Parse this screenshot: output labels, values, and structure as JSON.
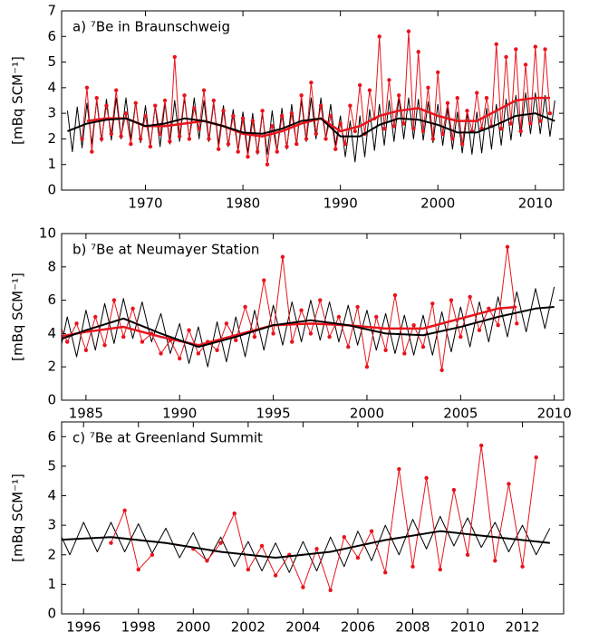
{
  "chart_data": [
    {
      "type": "line",
      "title": "a) ⁷Be in Braunschweig",
      "y_label": "[mBq SCM⁻¹]",
      "xlim": [
        1961.4,
        2012.9
      ],
      "ylim": [
        0,
        7
      ],
      "xticks": [
        1970,
        1980,
        1990,
        2000,
        2010
      ],
      "yticks": [
        0,
        1,
        2,
        3,
        4,
        5,
        6,
        7
      ],
      "x": [
        1962,
        1962.5,
        1963,
        1963.5,
        1964,
        1964.5,
        1965,
        1965.5,
        1966,
        1966.5,
        1967,
        1967.5,
        1968,
        1968.5,
        1969,
        1969.5,
        1970,
        1970.5,
        1971,
        1971.5,
        1972,
        1972.5,
        1973,
        1973.5,
        1974,
        1974.5,
        1975,
        1975.5,
        1976,
        1976.5,
        1977,
        1977.5,
        1978,
        1978.5,
        1979,
        1979.5,
        1980,
        1980.5,
        1981,
        1981.5,
        1982,
        1982.5,
        1983,
        1983.5,
        1984,
        1984.5,
        1985,
        1985.5,
        1986,
        1986.5,
        1987,
        1987.5,
        1988,
        1988.5,
        1989,
        1989.5,
        1990,
        1990.5,
        1991,
        1991.5,
        1992,
        1992.5,
        1993,
        1993.5,
        1994,
        1994.5,
        1995,
        1995.5,
        1996,
        1996.5,
        1997,
        1997.5,
        1998,
        1998.5,
        1999,
        1999.5,
        2000,
        2000.5,
        2001,
        2001.5,
        2002,
        2002.5,
        2003,
        2003.5,
        2004,
        2004.5,
        2005,
        2005.5,
        2006,
        2006.5,
        2007,
        2007.5,
        2008,
        2008.5,
        2009,
        2009.5,
        2010,
        2010.5,
        2011,
        2011.5,
        2012
      ],
      "series": [
        {
          "color": "#000000",
          "line_width": 1,
          "values": [
            3.1,
            1.5,
            3.25,
            1.65,
            3.4,
            1.8,
            3.5,
            1.9,
            3.55,
            1.95,
            3.6,
            2.0,
            3.6,
            2.0,
            3.45,
            1.85,
            3.3,
            1.7,
            3.3,
            1.7,
            3.4,
            1.8,
            3.5,
            1.9,
            3.6,
            2.0,
            3.6,
            2.0,
            3.5,
            1.9,
            3.4,
            1.8,
            3.3,
            1.7,
            3.15,
            1.55,
            3.05,
            1.45,
            3.0,
            1.4,
            3.0,
            1.4,
            3.1,
            1.5,
            3.2,
            1.6,
            3.35,
            1.75,
            3.5,
            1.9,
            3.6,
            2.0,
            3.6,
            2.0,
            3.35,
            1.75,
            2.9,
            1.3,
            2.7,
            1.1,
            2.9,
            1.3,
            3.15,
            1.55,
            3.35,
            1.75,
            3.5,
            1.9,
            3.6,
            2.0,
            3.6,
            2.0,
            3.55,
            1.95,
            3.45,
            1.85,
            3.35,
            1.75,
            3.2,
            1.6,
            3.05,
            1.45,
            3.0,
            1.4,
            3.05,
            1.45,
            3.2,
            1.6,
            3.35,
            1.75,
            3.55,
            1.95,
            3.7,
            2.1,
            3.8,
            2.2,
            3.8,
            2.2,
            3.7,
            2.1,
            3.5
          ]
        },
        {
          "color": "#e8141c",
          "line_width": 1,
          "markers": true,
          "values": [
            null,
            null,
            null,
            2.0,
            4.0,
            1.5,
            3.6,
            2.0,
            3.3,
            2.2,
            3.9,
            2.1,
            3.0,
            1.8,
            3.4,
            2.0,
            2.9,
            1.7,
            3.3,
            2.2,
            3.5,
            1.9,
            5.2,
            2.1,
            3.7,
            2.0,
            3.2,
            2.4,
            3.9,
            2.0,
            3.5,
            1.6,
            3.1,
            1.8,
            2.9,
            1.5,
            2.8,
            1.3,
            2.7,
            1.5,
            3.1,
            1.0,
            2.5,
            1.5,
            2.9,
            1.7,
            3.0,
            1.8,
            3.7,
            2.0,
            4.2,
            2.2,
            3.3,
            2.0,
            2.9,
            1.6,
            2.6,
            1.8,
            3.3,
            2.3,
            4.1,
            2.2,
            3.9,
            2.8,
            6.0,
            2.4,
            4.3,
            2.5,
            3.7,
            2.6,
            6.2,
            2.4,
            5.4,
            2.3,
            4.0,
            2.0,
            4.6,
            2.2,
            3.4,
            2.0,
            3.6,
            1.8,
            3.1,
            2.3,
            3.8,
            2.4,
            3.6,
            2.5,
            5.7,
            2.4,
            5.2,
            2.6,
            5.5,
            2.3,
            4.9,
            2.6,
            5.6,
            2.7,
            5.5,
            3.0,
            null
          ]
        },
        {
          "color": "#e8141c",
          "line_width": 2.5,
          "x": [
            1964,
            1966,
            1968,
            1970,
            1972,
            1974,
            1976,
            1978,
            1980,
            1982,
            1984,
            1986,
            1988,
            1990,
            1992,
            1994,
            1996,
            1998,
            2000,
            2002,
            2004,
            2006,
            2008,
            2010,
            2011.5
          ],
          "values": [
            2.7,
            2.8,
            2.8,
            2.5,
            2.5,
            2.6,
            2.7,
            2.5,
            2.2,
            2.1,
            2.3,
            2.6,
            2.8,
            2.3,
            2.5,
            2.9,
            3.1,
            3.2,
            2.9,
            2.7,
            2.7,
            3.1,
            3.5,
            3.6,
            3.6
          ]
        },
        {
          "color": "#000000",
          "line_width": 2,
          "x": [
            1962,
            1964,
            1966,
            1968,
            1970,
            1972,
            1974,
            1976,
            1978,
            1980,
            1982,
            1984,
            1986,
            1988,
            1990,
            1992,
            1994,
            1996,
            1998,
            2000,
            2002,
            2004,
            2006,
            2008,
            2010,
            2012
          ],
          "values": [
            2.3,
            2.6,
            2.75,
            2.8,
            2.5,
            2.6,
            2.8,
            2.7,
            2.5,
            2.25,
            2.2,
            2.4,
            2.7,
            2.8,
            2.1,
            2.1,
            2.55,
            2.8,
            2.75,
            2.55,
            2.25,
            2.25,
            2.55,
            2.9,
            3.0,
            2.7
          ]
        }
      ]
    },
    {
      "type": "line",
      "title": "b) ⁷Be at Neumayer Station",
      "y_label": "[mBq SCM⁻¹]",
      "xlim": [
        1983.7,
        2010.5
      ],
      "ylim": [
        0,
        10
      ],
      "xticks": [
        1985,
        1990,
        1995,
        2000,
        2005,
        2010
      ],
      "yticks": [
        0,
        2,
        4,
        6,
        8,
        10
      ],
      "x": [
        1983.5,
        1984,
        1984.5,
        1985,
        1985.5,
        1986,
        1986.5,
        1987,
        1987.5,
        1988,
        1988.5,
        1989,
        1989.5,
        1990,
        1990.5,
        1991,
        1991.5,
        1992,
        1992.5,
        1993,
        1993.5,
        1994,
        1994.5,
        1995,
        1995.5,
        1996,
        1996.5,
        1997,
        1997.5,
        1998,
        1998.5,
        1999,
        1999.5,
        2000,
        2000.5,
        2001,
        2001.5,
        2002,
        2002.5,
        2003,
        2003.5,
        2004,
        2004.5,
        2005,
        2005.5,
        2006,
        2006.5,
        2007,
        2007.5,
        2008,
        2008.5,
        2009,
        2009.5,
        2010
      ],
      "series": [
        {
          "color": "#000000",
          "line_width": 1,
          "values": [
            2.3,
            5.0,
            2.6,
            5.4,
            3.0,
            5.8,
            3.4,
            6.1,
            3.7,
            5.9,
            3.5,
            5.2,
            2.8,
            4.6,
            2.2,
            4.4,
            2.0,
            4.7,
            2.3,
            5.0,
            2.6,
            5.4,
            3.0,
            5.7,
            3.3,
            5.9,
            3.5,
            6.0,
            3.6,
            5.9,
            3.5,
            5.7,
            3.3,
            5.4,
            3.0,
            5.2,
            2.8,
            5.1,
            2.7,
            5.1,
            2.7,
            5.3,
            2.9,
            5.6,
            3.2,
            5.9,
            3.5,
            6.2,
            3.8,
            6.5,
            4.1,
            6.7,
            4.3,
            6.8
          ]
        },
        {
          "color": "#e8141c",
          "line_width": 1,
          "markers": true,
          "values": [
            4.8,
            3.5,
            4.6,
            3.0,
            5.0,
            3.3,
            6.0,
            3.8,
            5.5,
            3.5,
            4.0,
            2.8,
            3.6,
            2.5,
            4.2,
            2.8,
            3.5,
            3.0,
            4.6,
            3.6,
            5.6,
            3.8,
            7.2,
            4.0,
            8.6,
            3.5,
            5.4,
            4.0,
            6.0,
            3.8,
            5.0,
            3.2,
            5.6,
            2.0,
            5.0,
            3.0,
            6.3,
            2.8,
            4.5,
            3.2,
            5.8,
            1.8,
            6.0,
            3.8,
            6.2,
            4.2,
            5.5,
            4.5,
            9.2,
            4.6,
            null,
            null,
            null,
            null
          ]
        },
        {
          "color": "#e8141c",
          "line_width": 2.5,
          "x": [
            1983.5,
            1985,
            1987,
            1989,
            1991,
            1993,
            1995,
            1997,
            1999,
            2001,
            2003,
            2005,
            2007,
            2008
          ],
          "values": [
            3.8,
            4.1,
            4.4,
            3.8,
            3.3,
            3.9,
            4.5,
            4.6,
            4.5,
            4.3,
            4.3,
            4.9,
            5.5,
            5.6
          ]
        },
        {
          "color": "#000000",
          "line_width": 2,
          "x": [
            1983.5,
            1985,
            1987,
            1989,
            1991,
            1993,
            1995,
            1997,
            1999,
            2001,
            2003,
            2005,
            2007,
            2009,
            2010
          ],
          "values": [
            3.6,
            4.2,
            4.9,
            4.0,
            3.2,
            3.8,
            4.5,
            4.8,
            4.5,
            4.0,
            3.9,
            4.4,
            5.0,
            5.5,
            5.6
          ]
        }
      ]
    },
    {
      "type": "line",
      "title": "c) ⁷Be at Greenland Summit",
      "y_label": "[mBq SCM⁻¹]",
      "xlim": [
        1995.2,
        2013.5
      ],
      "ylim": [
        0,
        6.5
      ],
      "xticks": [
        1996,
        1998,
        2000,
        2002,
        2004,
        2006,
        2008,
        2010,
        2012
      ],
      "yticks": [
        0,
        1,
        2,
        3,
        4,
        5,
        6
      ],
      "x": [
        1995,
        1995.5,
        1996,
        1996.5,
        1997,
        1997.5,
        1998,
        1998.5,
        1999,
        1999.5,
        2000,
        2000.5,
        2001,
        2001.5,
        2002,
        2002.5,
        2003,
        2003.5,
        2004,
        2004.5,
        2005,
        2005.5,
        2006,
        2006.5,
        2007,
        2007.5,
        2008,
        2008.5,
        2009,
        2009.5,
        2010,
        2010.5,
        2011,
        2011.5,
        2012,
        2012.5,
        2013
      ],
      "series": [
        {
          "color": "#000000",
          "line_width": 1,
          "values": [
            3.0,
            2.0,
            3.1,
            2.1,
            3.1,
            2.1,
            3.05,
            2.05,
            2.9,
            1.9,
            2.75,
            1.75,
            2.6,
            1.6,
            2.45,
            1.45,
            2.4,
            1.4,
            2.45,
            1.45,
            2.6,
            1.6,
            2.8,
            1.8,
            3.0,
            2.0,
            3.2,
            2.2,
            3.3,
            2.3,
            3.25,
            2.25,
            3.1,
            2.1,
            3.0,
            2.0,
            2.9
          ]
        },
        {
          "color": "#e8141c",
          "line_width": 1,
          "markers": true,
          "values": [
            null,
            null,
            null,
            null,
            2.4,
            3.5,
            1.5,
            2.0,
            null,
            null,
            2.2,
            1.8,
            2.4,
            3.4,
            1.5,
            2.3,
            1.3,
            2.0,
            0.9,
            2.2,
            0.8,
            2.6,
            1.9,
            2.8,
            1.4,
            4.9,
            1.6,
            4.6,
            1.5,
            4.2,
            2.0,
            5.7,
            1.8,
            4.4,
            1.6,
            5.3,
            null
          ]
        },
        {
          "color": "#000000",
          "line_width": 2,
          "x": [
            1995,
            1997,
            1999,
            2001,
            2003,
            2005,
            2007,
            2009,
            2011,
            2013
          ],
          "values": [
            2.5,
            2.6,
            2.4,
            2.1,
            1.9,
            2.1,
            2.5,
            2.8,
            2.6,
            2.4
          ]
        }
      ]
    }
  ]
}
